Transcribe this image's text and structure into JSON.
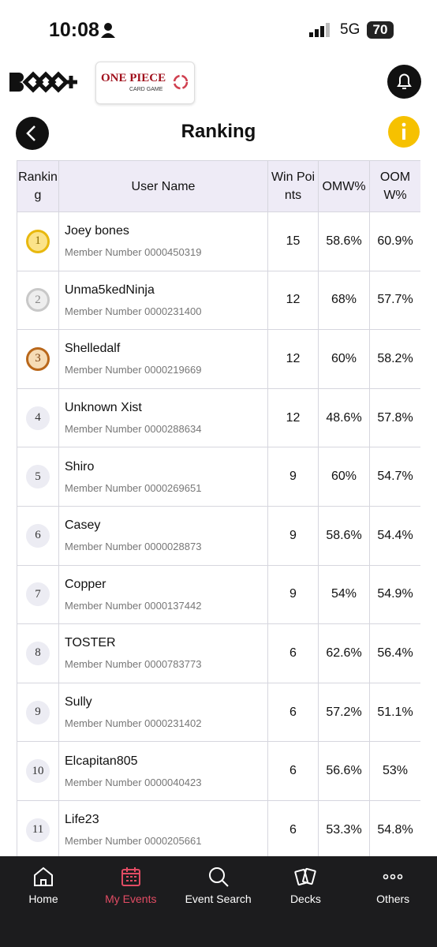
{
  "status": {
    "time": "10:08",
    "network": "5G",
    "battery": "70"
  },
  "header": {
    "brand_line1": "ONE PIECE",
    "brand_line2": "CARD GAME",
    "title": "Ranking"
  },
  "table": {
    "columns": [
      "Ranking",
      "User Name",
      "Win Points",
      "OMW%",
      "OOMW%"
    ],
    "rows": [
      [
        "1",
        "Joey bones",
        "Member Number 0000450319",
        15,
        "58.6%",
        "60.9%"
      ],
      [
        "2",
        "Unma5kedNinja",
        "Member Number 0000231400",
        12,
        "68%",
        "57.7%"
      ],
      [
        "3",
        "Shelledalf",
        "Member Number 0000219669",
        12,
        "60%",
        "58.2%"
      ],
      [
        "4",
        "Unknown Xist",
        "Member Number 0000288634",
        12,
        "48.6%",
        "57.8%"
      ],
      [
        "5",
        "Shiro",
        "Member Number 0000269651",
        9,
        "60%",
        "54.7%"
      ],
      [
        "6",
        "Casey",
        "Member Number 0000028873",
        9,
        "58.6%",
        "54.4%"
      ],
      [
        "7",
        "Copper",
        "Member Number 0000137442",
        9,
        "54%",
        "54.9%"
      ],
      [
        "8",
        "TOSTER",
        "Member Number 0000783773",
        6,
        "62.6%",
        "56.4%"
      ],
      [
        "9",
        "Sully",
        "Member Number 0000231402",
        6,
        "57.2%",
        "51.1%"
      ],
      [
        "10",
        "Elcapitan805",
        "Member Number 0000040423",
        6,
        "56.6%",
        "53%"
      ],
      [
        "11",
        "Life23",
        "Member Number 0000205661",
        6,
        "53.3%",
        "54.8%"
      ]
    ]
  },
  "nav": [
    "Home",
    "My Events",
    "Event Search",
    "Decks",
    "Others"
  ]
}
